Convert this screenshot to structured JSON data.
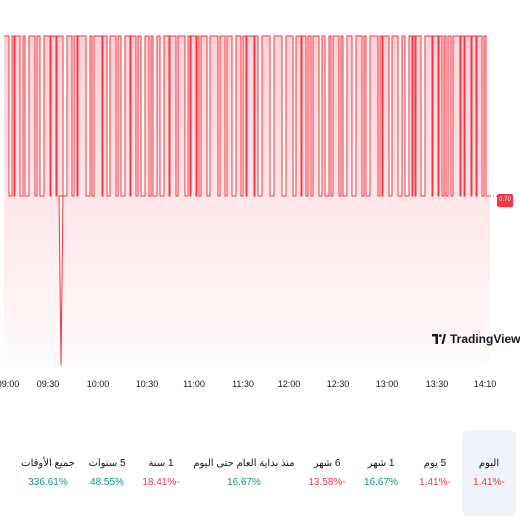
{
  "chart_data": {
    "type": "area",
    "x_ticks": [
      "09:00",
      "09:30",
      "10:00",
      "10:30",
      "11:00",
      "11:30",
      "12:00",
      "12:30",
      "13:00",
      "13:30",
      "14:10"
    ],
    "high_value": 0.72,
    "low_value": 0.7,
    "spike_value": 0.685,
    "last_value_label": "0.70",
    "series_pattern": [
      0,
      1,
      0,
      1,
      0,
      1,
      0,
      1,
      0,
      1,
      0,
      1,
      0,
      1,
      0,
      1,
      0,
      1,
      0,
      1,
      0,
      1,
      0,
      1,
      0,
      1,
      0,
      1,
      0,
      1,
      0,
      1,
      0,
      1,
      0,
      1,
      0,
      1,
      0,
      1,
      0,
      1,
      0,
      1,
      0,
      1,
      0,
      1,
      0,
      1,
      0,
      1,
      0,
      1,
      0,
      1,
      0,
      1,
      0,
      1,
      0,
      1,
      0,
      1,
      0,
      1,
      0,
      1,
      0,
      1,
      0,
      1,
      0,
      1,
      0,
      1,
      0,
      1,
      0,
      1,
      0,
      1,
      0,
      1,
      0,
      1,
      0,
      1,
      0,
      1,
      0,
      1,
      0,
      1,
      0,
      1,
      0,
      1,
      0,
      1,
      0,
      1,
      0,
      1,
      0,
      1,
      0,
      1,
      0,
      1,
      0,
      1,
      0,
      1,
      0,
      1,
      0,
      1,
      0,
      1,
      0,
      1,
      0,
      1,
      0,
      1,
      0,
      1,
      0,
      1,
      0,
      1,
      0,
      1,
      0,
      1,
      0,
      1,
      0,
      1,
      0,
      1,
      0,
      1,
      0,
      1,
      0,
      1,
      0,
      1,
      0,
      1,
      0,
      1,
      0,
      1,
      0,
      1,
      0,
      1,
      0,
      1,
      0,
      1,
      0,
      1,
      0,
      1,
      0,
      1,
      0,
      1,
      0,
      1,
      0,
      1,
      0,
      1,
      0,
      1,
      0,
      1,
      0,
      1,
      0,
      1,
      0,
      1,
      0,
      1,
      0,
      1,
      0,
      1,
      0,
      1,
      0,
      1,
      0,
      1,
      0,
      1,
      0,
      1,
      0,
      1,
      0,
      1,
      0,
      1,
      0,
      1,
      0,
      1,
      0,
      1,
      0,
      1,
      0,
      1,
      0,
      1,
      0,
      1,
      0,
      1,
      0,
      1,
      0,
      1,
      0,
      1,
      0,
      1,
      0,
      1,
      0,
      1,
      0,
      1,
      0,
      1,
      0,
      1,
      0,
      1,
      0,
      1,
      0,
      1,
      0,
      1,
      0,
      1,
      0,
      1,
      0,
      1,
      0,
      1,
      0,
      1,
      0,
      1,
      0,
      1,
      0,
      1,
      0,
      1,
      0,
      1,
      0,
      1,
      0,
      1,
      0,
      1
    ],
    "line_color": "#f23645",
    "fill_color": "#f23645"
  },
  "logo": {
    "text": "TradingView"
  },
  "periods": [
    {
      "label": "اليوم",
      "value": "1.41%-",
      "trend": "neg",
      "selected": true
    },
    {
      "label": "5 يوم",
      "value": "1.41%-",
      "trend": "neg",
      "selected": false
    },
    {
      "label": "1 شهر",
      "value": "16.67%",
      "trend": "pos",
      "selected": false
    },
    {
      "label": "6 شهر",
      "value": "13.58%-",
      "trend": "neg",
      "selected": false
    },
    {
      "label": "منذ بداية العام حتى اليوم",
      "value": "16.67%",
      "trend": "pos",
      "selected": false
    },
    {
      "label": "1 سنة",
      "value": "18.41%-",
      "trend": "neg",
      "selected": false
    },
    {
      "label": "5 سنوات",
      "value": "48.55%",
      "trend": "pos",
      "selected": false
    },
    {
      "label": "جميع الأوقات",
      "value": "336.61%",
      "trend": "pos",
      "selected": false
    }
  ]
}
